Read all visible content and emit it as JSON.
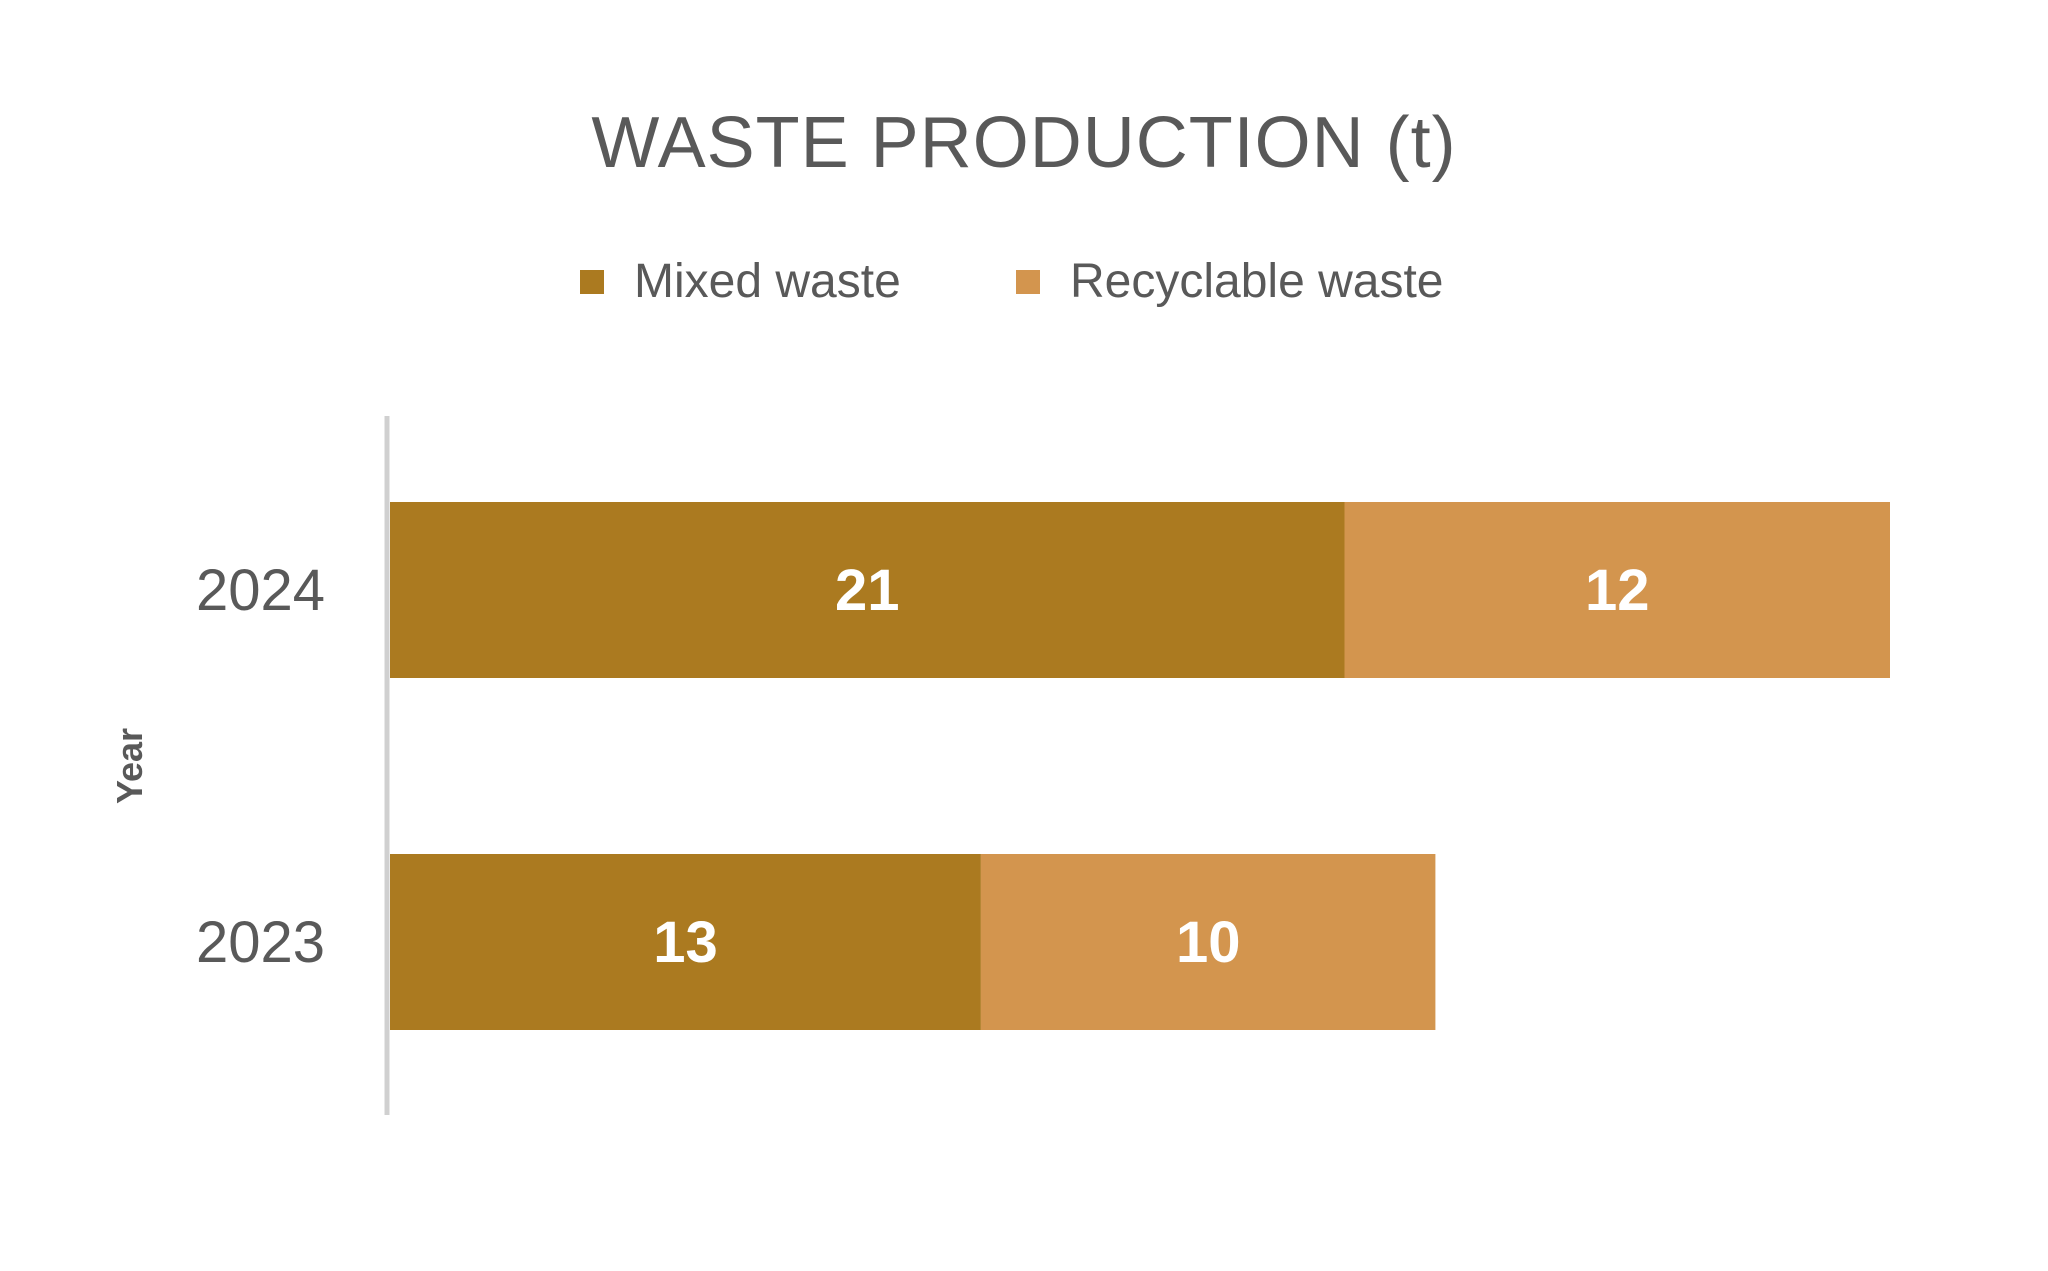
{
  "chart_data": {
    "type": "bar",
    "orientation": "horizontal",
    "stacked": true,
    "title": "WASTE PRODUCTION (t)",
    "ylabel": "Year",
    "xlabel": "",
    "categories": [
      "2024",
      "2023"
    ],
    "series": [
      {
        "name": "Mixed waste",
        "values": [
          21,
          13
        ],
        "color": "#AB7A20"
      },
      {
        "name": "Recyclable waste",
        "values": [
          12,
          10
        ],
        "color": "#D3954E"
      }
    ],
    "data_labels": true,
    "legend_position": "top",
    "grid": false
  }
}
